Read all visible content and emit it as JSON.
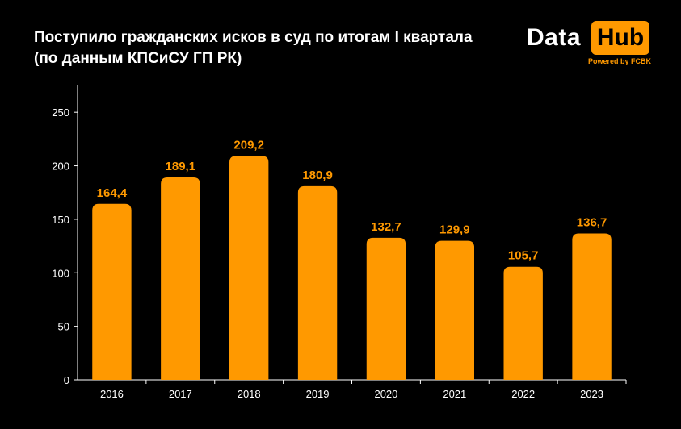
{
  "header": {
    "title_line1": "Поступило гражданских исков в суд по итогам I квартала",
    "title_line2": "(по данным КПСиСУ ГП РК)"
  },
  "logo": {
    "text_data": "Data",
    "text_hub": "Hub",
    "powered": "Powered by FCBK"
  },
  "colors": {
    "bar": "#ff9900",
    "label": "#ff9900",
    "axis": "#ffffff",
    "background": "#000000"
  },
  "chart_data": {
    "type": "bar",
    "title": "Поступило гражданских исков в суд по итогам I квартала (по данным КПСиСУ ГП РК)",
    "categories": [
      "2016",
      "2017",
      "2018",
      "2019",
      "2020",
      "2021",
      "2022",
      "2023"
    ],
    "values": [
      164.4,
      189.1,
      209.2,
      180.9,
      132.7,
      129.9,
      105.7,
      136.7
    ],
    "value_labels": [
      "164,4",
      "189,1",
      "209,2",
      "180,9",
      "132,7",
      "129,9",
      "105,7",
      "136,7"
    ],
    "y_ticks": [
      0,
      50,
      100,
      150,
      200,
      250
    ],
    "ylim": [
      0,
      275
    ],
    "xlabel": "",
    "ylabel": "",
    "grid": false,
    "legend": "none"
  }
}
